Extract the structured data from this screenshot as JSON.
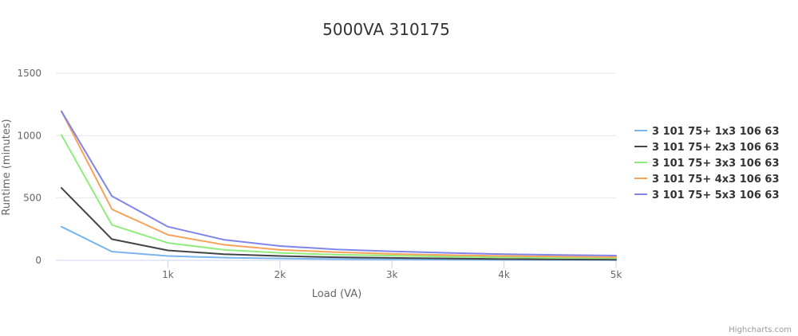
{
  "chart_data": {
    "type": "line",
    "title": "5000VA 310175",
    "xlabel": "Load (VA)",
    "ylabel": "Runtime (minutes)",
    "xlim": [
      0,
      5000
    ],
    "ylim": [
      0,
      1500
    ],
    "x_ticks": [
      1000,
      2000,
      3000,
      4000,
      5000
    ],
    "x_tick_labels": [
      "1k",
      "2k",
      "3k",
      "4k",
      "5k"
    ],
    "y_ticks": [
      0,
      500,
      1000,
      1500
    ],
    "y_tick_labels": [
      "0",
      "500",
      "1000",
      "1500"
    ],
    "grid": "horizontal",
    "legend_position": "right",
    "x": [
      50,
      500,
      1000,
      1500,
      2000,
      2500,
      3000,
      3500,
      4000,
      4500,
      5000
    ],
    "series": [
      {
        "name": "3 101 75+ 1x3 106 63",
        "color": "#7cb5ec",
        "values": [
          270,
          70,
          35,
          22,
          15,
          10,
          8,
          6,
          4,
          3,
          2
        ]
      },
      {
        "name": "3 101 75+ 2x3 106 63",
        "color": "#434348",
        "values": [
          580,
          170,
          80,
          50,
          35,
          25,
          20,
          15,
          10,
          8,
          6
        ]
      },
      {
        "name": "3 101 75+ 3x3 106 63",
        "color": "#90ed7d",
        "values": [
          1005,
          285,
          140,
          85,
          60,
          45,
          38,
          30,
          24,
          20,
          17
        ]
      },
      {
        "name": "3 101 75+ 4x3 106 63",
        "color": "#f7a35c",
        "values": [
          1195,
          410,
          205,
          125,
          85,
          65,
          52,
          42,
          35,
          30,
          26
        ]
      },
      {
        "name": "3 101 75+ 5x3 106 63",
        "color": "#8085e9",
        "values": [
          1195,
          515,
          270,
          165,
          115,
          88,
          72,
          60,
          50,
          43,
          38
        ]
      }
    ]
  },
  "credits": "Highcharts.com"
}
